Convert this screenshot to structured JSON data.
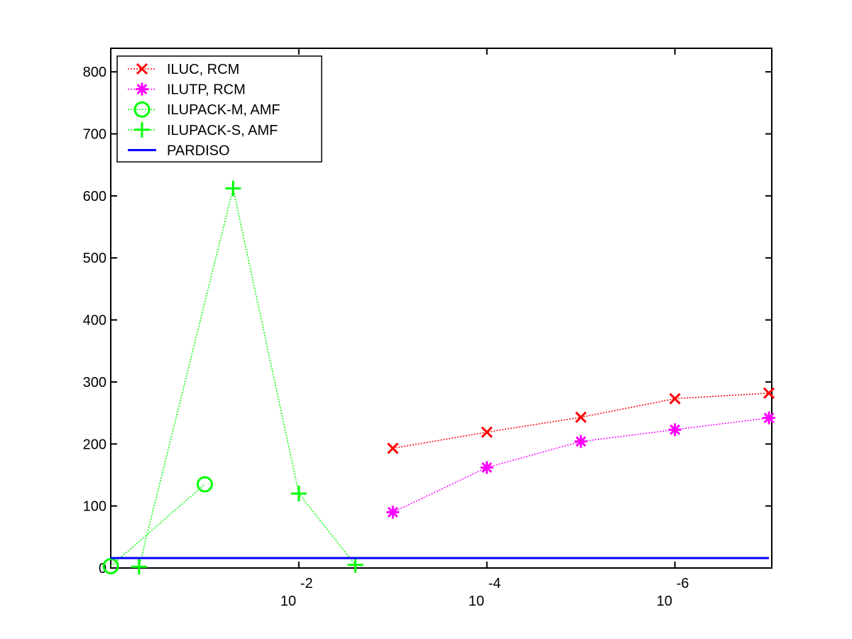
{
  "chart_data": {
    "type": "line",
    "title": "",
    "xlabel": "",
    "ylabel": "",
    "x_scale": "log",
    "x_reversed": true,
    "x_tick_labels": [
      {
        "x": 0.01,
        "base": "10",
        "exp": "-2"
      },
      {
        "x": 0.0001,
        "base": "10",
        "exp": "-4"
      },
      {
        "x": 1e-06,
        "base": "10",
        "exp": "-6"
      }
    ],
    "y_ticks": [
      0,
      100,
      200,
      300,
      400,
      500,
      600,
      700,
      800
    ],
    "ylim": [
      0,
      800
    ],
    "grid": false,
    "legend_position": "top-left",
    "series": [
      {
        "name": "ILUC, RCM",
        "color": "#ff0000",
        "marker": "x",
        "line": "dotted",
        "points": [
          {
            "x": 0.001,
            "y": 193
          },
          {
            "x": 0.0001,
            "y": 219
          },
          {
            "x": 1e-05,
            "y": 243
          },
          {
            "x": 1e-06,
            "y": 273
          },
          {
            "x": 1e-07,
            "y": 282
          }
        ]
      },
      {
        "name": "ILUTP, RCM",
        "color": "#ff00ff",
        "marker": "asterisk",
        "line": "dotted",
        "points": [
          {
            "x": 0.001,
            "y": 90
          },
          {
            "x": 0.0001,
            "y": 162
          },
          {
            "x": 1e-05,
            "y": 204
          },
          {
            "x": 1e-06,
            "y": 223
          },
          {
            "x": 1e-07,
            "y": 242
          }
        ]
      },
      {
        "name": "ILUPACK-M, AMF",
        "color": "#00ff00",
        "marker": "circle",
        "line": "dotted",
        "points": [
          {
            "x": 1,
            "y": 3
          },
          {
            "x": 0.1,
            "y": 135
          }
        ]
      },
      {
        "name": "ILUPACK-S, AMF",
        "color": "#00ff00",
        "marker": "plus",
        "line": "dotted",
        "points": [
          {
            "x": 0.5,
            "y": 2
          },
          {
            "x": 0.05,
            "y": 612
          },
          {
            "x": 0.01,
            "y": 120
          },
          {
            "x": 0.0025,
            "y": 5
          }
        ]
      },
      {
        "name": "PARDISO",
        "color": "#0000ff",
        "marker": "none",
        "line": "solid",
        "points": [
          {
            "x": 1,
            "y": 16
          },
          {
            "x": 1e-07,
            "y": 16
          }
        ]
      }
    ]
  }
}
